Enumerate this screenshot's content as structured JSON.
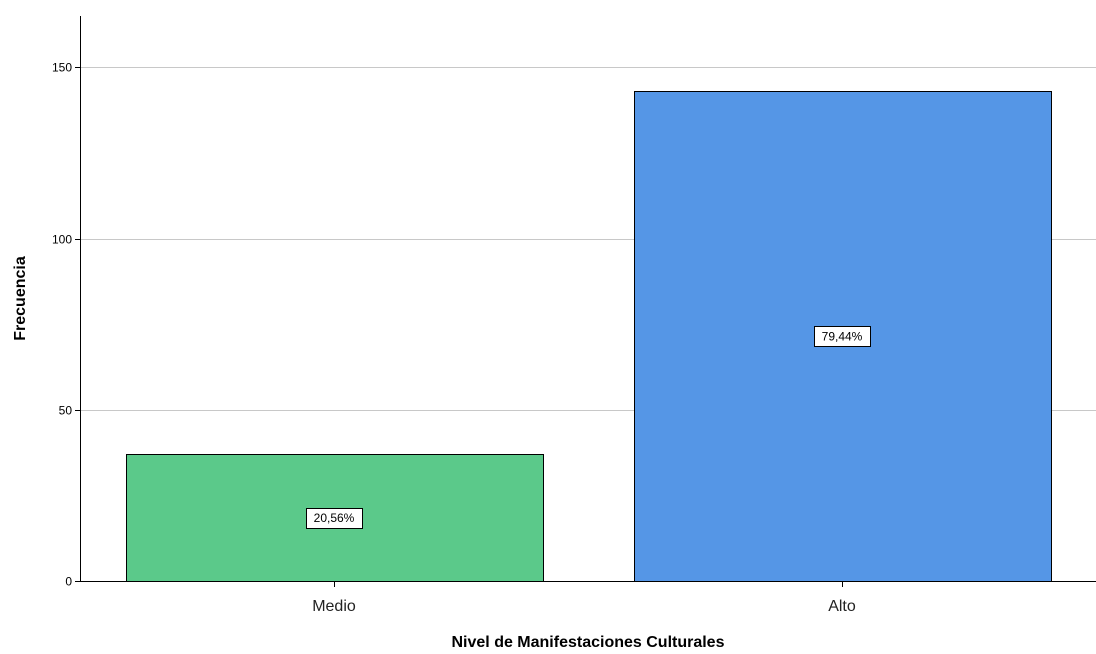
{
  "chart_data": {
    "type": "bar",
    "title": "",
    "xlabel": "Nivel de Manifestaciones Culturales",
    "ylabel": "Frecuencia",
    "categories": [
      "Medio",
      "Alto"
    ],
    "values": [
      37,
      143
    ],
    "data_labels": [
      "20,56%",
      "79,44%"
    ],
    "colors": [
      "#5bc98a",
      "#5596e6"
    ],
    "ylim": [
      0,
      165
    ],
    "yticks": [
      0,
      50,
      100,
      150
    ],
    "grid": true,
    "legend": "none"
  }
}
